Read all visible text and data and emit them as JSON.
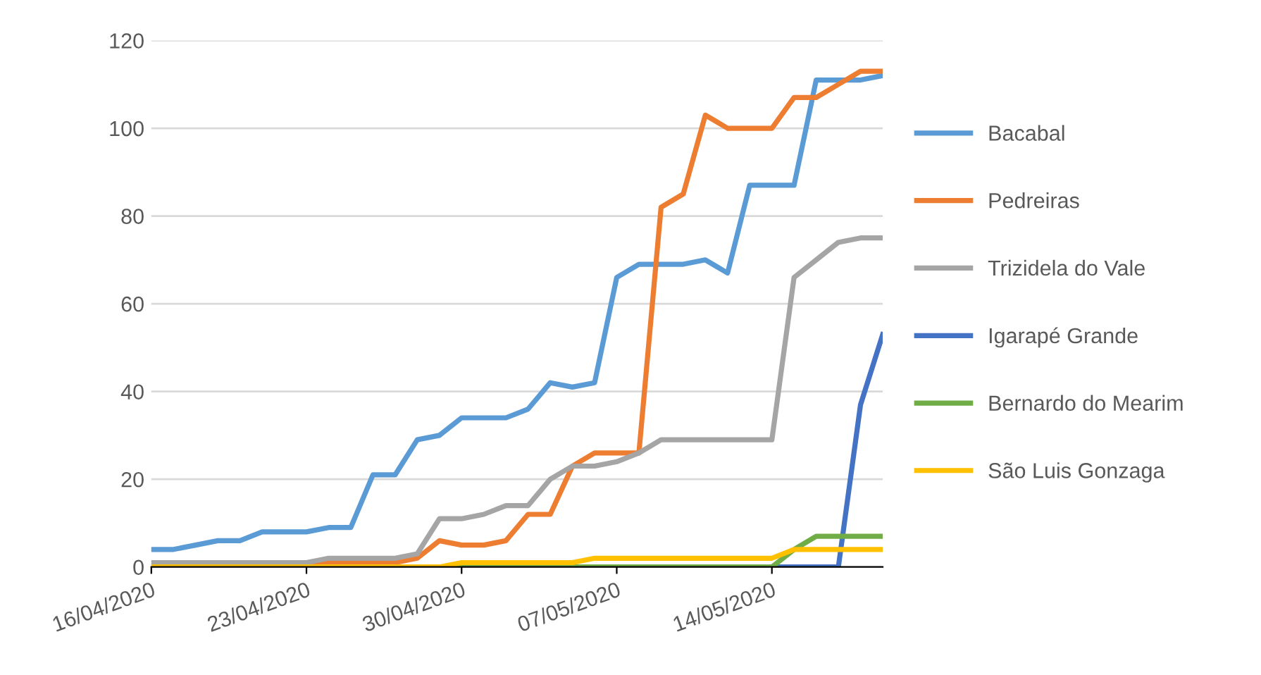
{
  "chart_data": {
    "type": "line",
    "x": [
      "2020-04-16",
      "2020-04-17",
      "2020-04-18",
      "2020-04-19",
      "2020-04-20",
      "2020-04-21",
      "2020-04-22",
      "2020-04-23",
      "2020-04-24",
      "2020-04-25",
      "2020-04-26",
      "2020-04-27",
      "2020-04-28",
      "2020-04-29",
      "2020-04-30",
      "2020-05-01",
      "2020-05-02",
      "2020-05-03",
      "2020-05-04",
      "2020-05-05",
      "2020-05-06",
      "2020-05-07",
      "2020-05-08",
      "2020-05-09",
      "2020-05-10",
      "2020-05-11",
      "2020-05-12",
      "2020-05-13",
      "2020-05-14",
      "2020-05-15",
      "2020-05-16",
      "2020-05-17",
      "2020-05-18",
      "2020-05-19"
    ],
    "series": [
      {
        "name": "Bacabal",
        "color": "#5b9bd5",
        "values": [
          4,
          4,
          5,
          6,
          6,
          8,
          8,
          8,
          9,
          9,
          21,
          21,
          29,
          30,
          34,
          34,
          34,
          36,
          42,
          41,
          42,
          66,
          69,
          69,
          69,
          70,
          67,
          87,
          87,
          87,
          111,
          111,
          111,
          112
        ]
      },
      {
        "name": "Pedreiras",
        "color": "#ed7d31",
        "values": [
          null,
          null,
          null,
          null,
          null,
          null,
          0,
          0,
          1,
          1,
          1,
          1,
          2,
          6,
          5,
          5,
          6,
          12,
          12,
          23,
          26,
          26,
          26,
          82,
          85,
          103,
          100,
          100,
          100,
          107,
          107,
          110,
          113,
          113
        ]
      },
      {
        "name": "Trizidela do Vale",
        "color": "#a5a5a5",
        "values": [
          1,
          1,
          1,
          1,
          1,
          1,
          1,
          1,
          2,
          2,
          2,
          2,
          3,
          11,
          11,
          12,
          14,
          14,
          20,
          23,
          23,
          24,
          26,
          29,
          29,
          29,
          29,
          29,
          29,
          66,
          70,
          74,
          75,
          75
        ]
      },
      {
        "name": "Igarapé Grande",
        "color": "#4472c4",
        "values": [
          null,
          null,
          null,
          null,
          null,
          null,
          null,
          null,
          null,
          null,
          null,
          null,
          null,
          null,
          null,
          null,
          null,
          null,
          null,
          null,
          null,
          null,
          null,
          null,
          null,
          null,
          null,
          null,
          0,
          0,
          0,
          0,
          37,
          53
        ]
      },
      {
        "name": "Bernardo do Mearim",
        "color": "#70ad47",
        "values": [
          null,
          null,
          null,
          null,
          null,
          null,
          null,
          null,
          null,
          null,
          null,
          null,
          null,
          0,
          0,
          0,
          0,
          0,
          0,
          0,
          0,
          0,
          0,
          0,
          0,
          0,
          0,
          0,
          0,
          4,
          7,
          7,
          7,
          7
        ]
      },
      {
        "name": "São Luis Gonzaga",
        "color": "#ffc000",
        "values": [
          0,
          0,
          0,
          0,
          0,
          0,
          0,
          0,
          0,
          0,
          0,
          0,
          0,
          0,
          1,
          1,
          1,
          1,
          1,
          1,
          2,
          2,
          2,
          2,
          2,
          2,
          2,
          2,
          2,
          4,
          4,
          4,
          4,
          4
        ]
      }
    ],
    "xlim": [
      "2020-04-16",
      "2020-05-19"
    ],
    "xticks": [
      {
        "value": "2020-04-16",
        "label": "16/04/2020"
      },
      {
        "value": "2020-04-23",
        "label": "23/04/2020"
      },
      {
        "value": "2020-04-30",
        "label": "30/04/2020"
      },
      {
        "value": "2020-05-07",
        "label": "07/05/2020"
      },
      {
        "value": "2020-05-14",
        "label": "14/05/2020"
      }
    ],
    "ylim": [
      0,
      120
    ],
    "yticks": [
      0,
      20,
      40,
      60,
      80,
      100,
      120
    ],
    "grid": "y",
    "legend": "right",
    "marker": "none",
    "line_style": "solid"
  }
}
